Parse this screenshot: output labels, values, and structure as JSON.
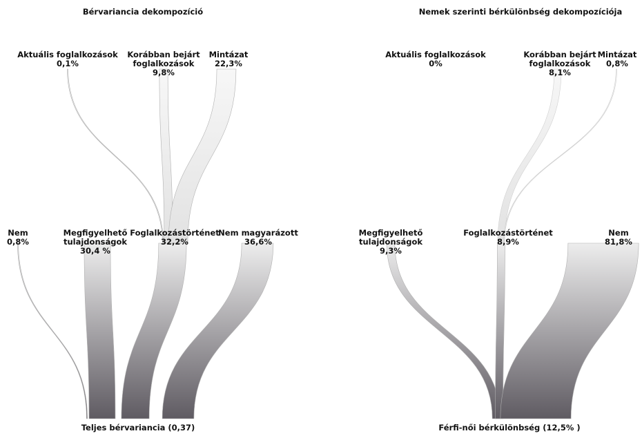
{
  "diagrams": [
    {
      "title": "Bérvariancia dekompozíció",
      "total_label": "Teljes bérvariancia (0,37)",
      "top_nodes": [
        {
          "label_lines": [
            "Aktuális foglalkozások"
          ],
          "value_text": "0,1%",
          "share": 0.1
        },
        {
          "label_lines": [
            "Korábban bejárt",
            "foglalkozások"
          ],
          "value_text": "9,8%",
          "share": 9.8
        },
        {
          "label_lines": [
            "Mintázat"
          ],
          "value_text": "22,3%",
          "share": 22.3
        }
      ],
      "mid_nodes": [
        {
          "label_lines": [
            "Nem"
          ],
          "value_text": "0,8%",
          "share": 0.8
        },
        {
          "label_lines": [
            "Megfigyelhető",
            "tulajdonságok"
          ],
          "value_text": "30,4 %",
          "share": 30.4
        },
        {
          "label_lines": [
            "Foglalkozástörténet"
          ],
          "value_text": "32,2%",
          "share": 32.2
        },
        {
          "label_lines": [
            "Nem magyarázott"
          ],
          "value_text": "36,6%",
          "share": 36.6
        }
      ]
    },
    {
      "title": "Nemek szerinti bérkülönbség dekompozíciója",
      "total_label": "Férfi-női bérkülönbség (12,5% )",
      "top_nodes": [
        {
          "label_lines": [
            "Aktuális foglalkozások"
          ],
          "value_text": "0%",
          "share": 0
        },
        {
          "label_lines": [
            "Korábban bejárt",
            "foglalkozások"
          ],
          "value_text": "8,1%",
          "share": 8.1
        },
        {
          "label_lines": [
            "Mintázat"
          ],
          "value_text": "0,8%",
          "share": 0.8
        }
      ],
      "mid_nodes": [
        {
          "label_lines": [
            "Megfigyelhető",
            "tulajdonságok"
          ],
          "value_text": "9,3%",
          "share": 9.3
        },
        {
          "label_lines": [
            "Foglalkozástörténet"
          ],
          "value_text": "8,9%",
          "share": 8.9
        },
        {
          "label_lines": [
            "Nem"
          ],
          "value_text": "81,8%",
          "share": 81.8
        }
      ]
    }
  ],
  "colors": {
    "flow_top": "#ededed",
    "flow_bottom": "#5f5b62",
    "flow_edge": "#b0b0b0",
    "background": "#ffffff"
  }
}
